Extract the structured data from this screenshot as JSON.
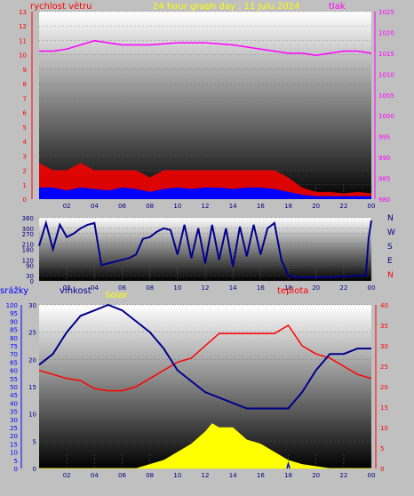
{
  "header": {
    "title": "24 hour graph day : 11 Julu 2024",
    "wind_label": "rychlost větru",
    "pressure_label": "tlak"
  },
  "lower_labels": {
    "rain": "srážky",
    "humidity": "vlhkost",
    "solar": "Solar",
    "temperature": "teplota"
  },
  "colors": {
    "wind_gust": "#ff0000",
    "wind_avg": "#0000ff",
    "pressure": "#ff00ff",
    "direction": "#00008b",
    "humidity": "#00008b",
    "temperature": "#ff0000",
    "solar": "#ffff00",
    "rain": "#0000ff",
    "title": "#ffff00",
    "axis_left": "#ff0000",
    "axis_right": "#ff00ff"
  },
  "chart_data": [
    {
      "id": "wind_pressure",
      "type": "line",
      "title": "24 hour graph day : 11 Julu 2024",
      "x_ticks": [
        "02",
        "04",
        "06",
        "08",
        "10",
        "12",
        "14",
        "16",
        "18",
        "20",
        "22",
        "00"
      ],
      "y_left": {
        "label": "rychlost větru",
        "range": [
          0,
          13
        ],
        "ticks": [
          0,
          1,
          2,
          3,
          4,
          5,
          6,
          7,
          8,
          9,
          10,
          11,
          12,
          13
        ]
      },
      "y_right": {
        "label": "tlak",
        "range": [
          980,
          1025
        ],
        "ticks": [
          980,
          985,
          990,
          995,
          1000,
          1005,
          1010,
          1015,
          1020,
          1025
        ]
      },
      "series": [
        {
          "name": "tlak",
          "axis": "right",
          "x": [
            0,
            1,
            2,
            3,
            4,
            5,
            6,
            8,
            10,
            12,
            14,
            16,
            18,
            19,
            20,
            21,
            22,
            23,
            24
          ],
          "y": [
            1015.5,
            1015.5,
            1016,
            1017,
            1018,
            1017.5,
            1017,
            1017,
            1017.5,
            1017.5,
            1017,
            1016,
            1015,
            1015,
            1014.5,
            1015,
            1015.5,
            1015.5,
            1015
          ]
        },
        {
          "name": "gust",
          "axis": "left",
          "x": [
            0,
            1,
            2,
            3,
            4,
            5,
            6,
            7,
            8,
            9,
            10,
            11,
            12,
            13,
            14,
            15,
            16,
            17,
            18,
            19,
            20,
            21,
            22,
            23,
            24
          ],
          "y": [
            2.5,
            2,
            2,
            2.5,
            2,
            2,
            2,
            2,
            1.5,
            2,
            2,
            2,
            2,
            2,
            2,
            2,
            2,
            2,
            1.5,
            0.8,
            0.5,
            0.5,
            0.4,
            0.5,
            0.4
          ]
        },
        {
          "name": "average",
          "axis": "left",
          "x": [
            0,
            1,
            2,
            3,
            4,
            5,
            6,
            7,
            8,
            9,
            10,
            11,
            12,
            13,
            14,
            15,
            16,
            17,
            18,
            19,
            20,
            21,
            22,
            23,
            24
          ],
          "y": [
            0.8,
            0.8,
            0.6,
            0.8,
            0.7,
            0.6,
            0.8,
            0.7,
            0.5,
            0.7,
            0.8,
            0.7,
            0.8,
            0.8,
            0.7,
            0.8,
            0.8,
            0.7,
            0.5,
            0.3,
            0.2,
            0.2,
            0.2,
            0.2,
            0.2
          ]
        }
      ]
    },
    {
      "id": "wind_direction",
      "type": "line",
      "x_ticks": [
        "02",
        "04",
        "06",
        "08",
        "10",
        "12",
        "14",
        "16",
        "18",
        "20",
        "22",
        "00"
      ],
      "y_left": {
        "range": [
          0,
          360
        ],
        "ticks": [
          0,
          30,
          90,
          120,
          180,
          210,
          270,
          300,
          360
        ]
      },
      "y_right": {
        "ticks": [
          "N",
          "W",
          "S",
          "E",
          "N"
        ]
      },
      "series": [
        {
          "name": "direction",
          "x": [
            0,
            0.5,
            1,
            1.5,
            2,
            2.5,
            3,
            3.5,
            4,
            4.5,
            5,
            5.5,
            6,
            6.5,
            7,
            7.5,
            8,
            8.5,
            9,
            9.5,
            10,
            10.5,
            11,
            11.5,
            12,
            12.5,
            13,
            13.5,
            14,
            14.5,
            15,
            15.5,
            16,
            16.5,
            17,
            17.5,
            18,
            18.5,
            19,
            20,
            21,
            22,
            23,
            23.6,
            23.8,
            24
          ],
          "y": [
            200,
            330,
            180,
            320,
            250,
            270,
            300,
            320,
            330,
            90,
            100,
            110,
            120,
            130,
            150,
            240,
            250,
            280,
            300,
            290,
            150,
            320,
            130,
            300,
            100,
            320,
            120,
            300,
            80,
            310,
            140,
            320,
            150,
            300,
            330,
            120,
            30,
            20,
            20,
            20,
            20,
            25,
            30,
            30,
            240,
            345
          ]
        }
      ]
    },
    {
      "id": "rain_humidity_solar_temp",
      "type": "line",
      "x_ticks": [
        "02",
        "04",
        "06",
        "08",
        "10",
        "12",
        "14",
        "16",
        "18",
        "20",
        "22",
        "00"
      ],
      "y_rain": {
        "label": "srážky",
        "range": [
          0,
          100
        ],
        "ticks": [
          0,
          5,
          10,
          15,
          20,
          25,
          30,
          35,
          40,
          45,
          50,
          55,
          60,
          65,
          70,
          75,
          80,
          85,
          90,
          95,
          100
        ]
      },
      "y_humidity": {
        "label": "vlhkost",
        "range": [
          0,
          30
        ],
        "ticks": [
          0,
          5,
          10,
          15,
          20,
          25,
          30
        ]
      },
      "y_temp": {
        "label": "teplota",
        "range": [
          0,
          40
        ],
        "ticks": [
          0,
          5,
          10,
          15,
          20,
          25,
          30,
          35,
          40
        ]
      },
      "series": [
        {
          "name": "vlhkost",
          "axis": "humidity",
          "x": [
            0,
            1,
            2,
            3,
            4,
            5,
            6,
            7,
            8,
            9,
            10,
            11,
            12,
            13,
            14,
            15,
            16,
            17,
            18,
            19,
            20,
            21,
            22,
            23,
            24
          ],
          "y": [
            19,
            21,
            25,
            28,
            29,
            30,
            29,
            27,
            25,
            22,
            18,
            16,
            14,
            13,
            12,
            11,
            11,
            11,
            11,
            14,
            18,
            21,
            21,
            22,
            22
          ]
        },
        {
          "name": "teplota",
          "axis": "temp",
          "x": [
            0,
            1,
            2,
            3,
            4,
            5,
            6,
            7,
            8,
            9,
            10,
            11,
            12,
            13,
            14,
            15,
            16,
            17,
            18,
            19,
            20,
            21,
            22,
            23,
            24
          ],
          "y": [
            24,
            23,
            22,
            21.5,
            19.5,
            19,
            19,
            20,
            22,
            24,
            26,
            27,
            30,
            33,
            33,
            33,
            33,
            33,
            35,
            30,
            28,
            27,
            25,
            23,
            22
          ]
        },
        {
          "name": "Solar",
          "axis": "temp",
          "x": [
            0,
            7,
            8,
            9,
            10,
            11,
            12,
            12.5,
            13,
            14,
            15,
            16,
            17,
            18,
            19,
            20,
            21,
            22,
            23,
            24
          ],
          "y": [
            0,
            0,
            1,
            2,
            4,
            6,
            9,
            11,
            10,
            10,
            7,
            6,
            4,
            2,
            1,
            0.5,
            0,
            0,
            0,
            0
          ]
        },
        {
          "name": "srážky",
          "axis": "rain",
          "x": [
            17.9,
            18.0,
            18.1
          ],
          "y": [
            0,
            3,
            0
          ]
        }
      ]
    }
  ]
}
